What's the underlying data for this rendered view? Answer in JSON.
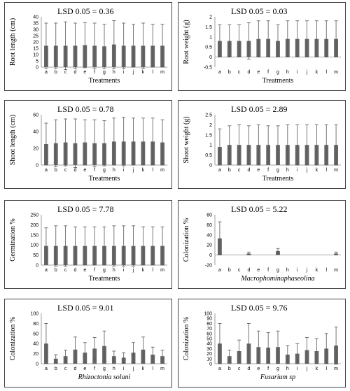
{
  "chart_data": [
    {
      "type": "bar",
      "title": "LSD 0.05 = 0.36",
      "ylabel": "Root length (cm)",
      "xlabel": "Treatments",
      "xlabel_italic": false,
      "categories": [
        "a",
        "b",
        "c",
        "d",
        "e",
        "f",
        "g",
        "h",
        "i",
        "j",
        "k",
        "l",
        "m"
      ],
      "values": [
        17,
        17,
        17,
        17,
        17.5,
        17,
        16.5,
        18,
        17,
        17,
        17,
        17,
        17
      ],
      "errors": [
        18,
        18,
        19,
        18,
        18,
        18,
        17.5,
        19,
        18,
        17,
        18,
        17,
        17
      ],
      "ylim": [
        0,
        40
      ],
      "yticks": [
        0,
        5,
        10,
        15,
        20,
        25,
        30,
        35,
        40
      ],
      "legend": "none",
      "grid": false
    },
    {
      "type": "bar",
      "title": "LSD 0.05 = 0.03",
      "ylabel": "Root weight (g)",
      "xlabel": "Treatments",
      "xlabel_italic": false,
      "categories": [
        "a",
        "b",
        "c",
        "d",
        "e",
        "f",
        "g",
        "h",
        "i",
        "j",
        "k",
        "l",
        "m"
      ],
      "values": [
        0.8,
        0.8,
        0.8,
        0.8,
        0.9,
        0.9,
        0.8,
        0.9,
        0.9,
        0.9,
        0.9,
        0.9,
        0.9
      ],
      "errors": [
        0.8,
        0.8,
        0.8,
        0.9,
        0.9,
        0.9,
        0.8,
        0.9,
        0.9,
        0.9,
        0.9,
        0.9,
        0.9
      ],
      "ylim": [
        -0.5,
        2
      ],
      "yticks": [
        -0.5,
        0,
        0.5,
        1,
        1.5,
        2
      ],
      "legend": "none",
      "grid": false
    },
    {
      "type": "bar",
      "title": "LSD 0.05 = 0.78",
      "ylabel": "Shoot length (cm)",
      "xlabel": "Treatments",
      "xlabel_italic": false,
      "categories": [
        "a",
        "b",
        "c",
        "d",
        "e",
        "f",
        "g",
        "h",
        "i",
        "j",
        "k",
        "l",
        "m"
      ],
      "values": [
        25,
        26,
        27,
        26,
        27,
        26,
        26,
        28,
        28,
        28,
        28,
        28,
        27
      ],
      "errors": [
        25,
        28,
        28,
        29,
        27,
        28,
        27,
        28,
        29,
        28,
        28,
        28,
        27
      ],
      "ylim": [
        0,
        60
      ],
      "yticks": [
        0,
        20,
        40,
        60
      ],
      "legend": "none",
      "grid": false
    },
    {
      "type": "bar",
      "title": "LSD 0.05 = 2.89",
      "ylabel": "Shoot weight (g)",
      "xlabel": "Treatments",
      "xlabel_italic": false,
      "categories": [
        "a",
        "b",
        "c",
        "d",
        "e",
        "f",
        "g",
        "h",
        "i",
        "j",
        "k",
        "l",
        "m"
      ],
      "values": [
        0.9,
        1,
        1,
        1,
        1,
        1,
        1,
        1,
        1,
        1,
        1,
        1,
        1
      ],
      "errors": [
        0.9,
        0.95,
        1,
        0.95,
        1,
        0.95,
        0.95,
        1,
        1,
        1,
        1,
        1,
        1
      ],
      "ylim": [
        0,
        2.5
      ],
      "yticks": [
        0,
        0.5,
        1,
        1.5,
        2,
        2.5
      ],
      "legend": "none",
      "grid": false
    },
    {
      "type": "bar",
      "title": "LSD 0.05 = 7.78",
      "ylabel": "Germination %",
      "xlabel": "Treatments",
      "xlabel_italic": false,
      "categories": [
        "a",
        "b",
        "c",
        "d",
        "e",
        "f",
        "g",
        "h",
        "i",
        "j",
        "k",
        "l",
        "m"
      ],
      "values": [
        95,
        95,
        95,
        95,
        95,
        95,
        95,
        95,
        95,
        95,
        95,
        95,
        95
      ],
      "errors": [
        90,
        100,
        100,
        95,
        95,
        95,
        95,
        100,
        100,
        100,
        95,
        95,
        95
      ],
      "ylim": [
        0,
        250
      ],
      "yticks": [
        0,
        50,
        100,
        150,
        200,
        250
      ],
      "legend": "none",
      "grid": false
    },
    {
      "type": "bar",
      "title": "LSD 0.05 = 5.22",
      "ylabel": "Colonization %",
      "xlabel": "Macrophominaphaseolina",
      "xlabel_italic": true,
      "categories": [
        "a",
        "b",
        "c",
        "d",
        "e",
        "f",
        "g",
        "h",
        "i",
        "j",
        "k",
        "l",
        "m"
      ],
      "values": [
        33,
        0,
        0,
        3,
        0,
        0,
        8,
        0,
        0,
        0,
        0,
        0,
        3
      ],
      "errors": [
        33,
        0,
        0,
        3,
        0,
        0,
        5,
        0,
        0,
        0,
        0,
        0,
        3
      ],
      "ylim": [
        -20,
        80
      ],
      "yticks": [
        -20,
        0,
        20,
        40,
        60,
        80
      ],
      "legend": "none",
      "grid": false
    },
    {
      "type": "bar",
      "title": "LSD 0.05 = 9.01",
      "ylabel": "Colonization %",
      "xlabel": "Rhizoctonia solani",
      "xlabel_italic": true,
      "categories": [
        "a",
        "b",
        "c",
        "d",
        "e",
        "f",
        "g",
        "h",
        "i",
        "j",
        "k",
        "l",
        "m"
      ],
      "values": [
        40,
        10,
        15,
        28,
        22,
        30,
        35,
        15,
        12,
        22,
        28,
        18,
        15
      ],
      "errors": [
        40,
        8,
        12,
        25,
        20,
        22,
        30,
        10,
        10,
        20,
        25,
        15,
        12
      ],
      "ylim": [
        0,
        100
      ],
      "yticks": [
        0,
        20,
        40,
        60,
        80,
        100
      ],
      "legend": "none",
      "grid": false
    },
    {
      "type": "bar",
      "title": "LSD 0.05 = 9.76",
      "ylabel": "Colonization %",
      "xlabel": "Fusarium sp",
      "xlabel_italic": true,
      "categories": [
        "a",
        "b",
        "c",
        "d",
        "e",
        "f",
        "g",
        "h",
        "i",
        "j",
        "k",
        "l",
        "m"
      ],
      "values": [
        40,
        15,
        25,
        40,
        33,
        32,
        33,
        18,
        20,
        27,
        25,
        30,
        36
      ],
      "errors": [
        40,
        12,
        22,
        40,
        32,
        30,
        32,
        18,
        20,
        25,
        25,
        30,
        37
      ],
      "ylim": [
        0,
        100
      ],
      "yticks": [
        0,
        10,
        20,
        30,
        40,
        50,
        60,
        70,
        80,
        90,
        100
      ],
      "legend": "none",
      "grid": false
    }
  ]
}
